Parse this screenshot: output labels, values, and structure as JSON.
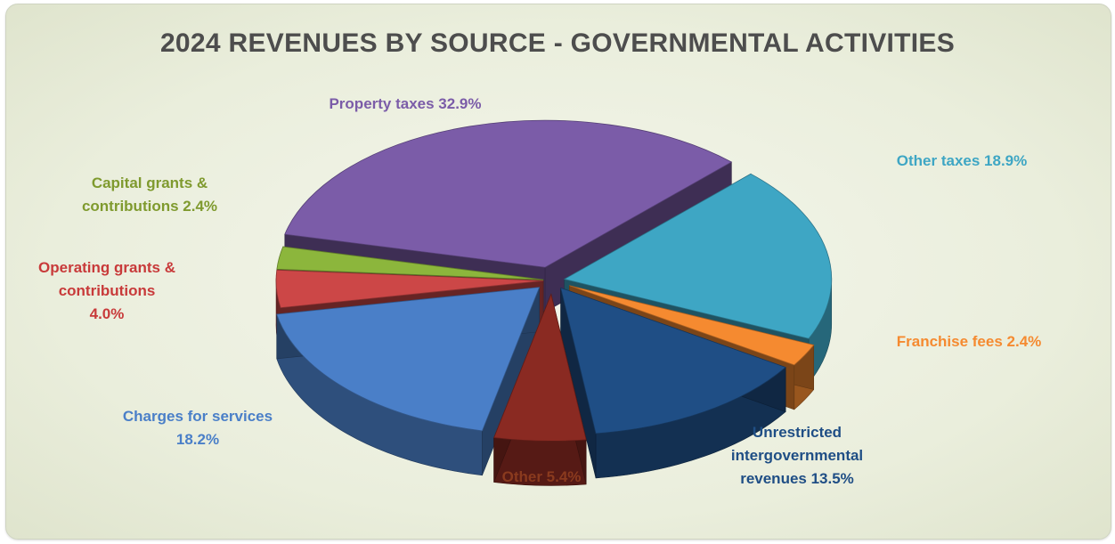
{
  "chart_data": {
    "type": "pie",
    "title": "2024 REVENUES BY SOURCE - GOVERNMENTAL ACTIVITIES",
    "slices": [
      {
        "name": "Property taxes",
        "value": 32.9,
        "label_lines": [
          "Property taxes 32.9%"
        ],
        "color": "#7b5ca8"
      },
      {
        "name": "Other taxes",
        "value": 18.9,
        "label_lines": [
          "Other taxes 18.9%"
        ],
        "color": "#3ea6c4"
      },
      {
        "name": "Franchise fees",
        "value": 2.4,
        "label_lines": [
          "Franchise fees 2.4%"
        ],
        "color": "#f58a30"
      },
      {
        "name": "Unrestricted intergovernmental revenues",
        "value": 13.5,
        "label_lines": [
          "Unrestricted",
          "intergovernmental",
          "revenues 13.5%"
        ],
        "color": "#1f4e85"
      },
      {
        "name": "Other",
        "value": 5.4,
        "label_lines": [
          "Other 5.4%"
        ],
        "color": "#8a2a22"
      },
      {
        "name": "Charges for services",
        "value": 18.2,
        "label_lines": [
          "Charges for services",
          "18.2%"
        ],
        "color": "#4a7fc8"
      },
      {
        "name": "Operating grants & contributions",
        "value": 4.0,
        "label_lines": [
          "Operating grants &",
          "contributions",
          "4.0%"
        ],
        "color": "#cc4747"
      },
      {
        "name": "Capital grants & contributions",
        "value": 2.4,
        "label_lines": [
          "Capital grants &",
          "contributions 2.4%"
        ],
        "color": "#8cb63c"
      }
    ],
    "label_colors": {
      "Property taxes": "#7b5ca8",
      "Other taxes": "#3ea6c4",
      "Franchise fees": "#f58a30",
      "Unrestricted intergovernmental revenues": "#1f4e85",
      "Other": "#8a3a1e",
      "Charges for services": "#4a7fc8",
      "Operating grants & contributions": "#c83a3a",
      "Capital grants & contributions": "#7f9a2e"
    }
  }
}
